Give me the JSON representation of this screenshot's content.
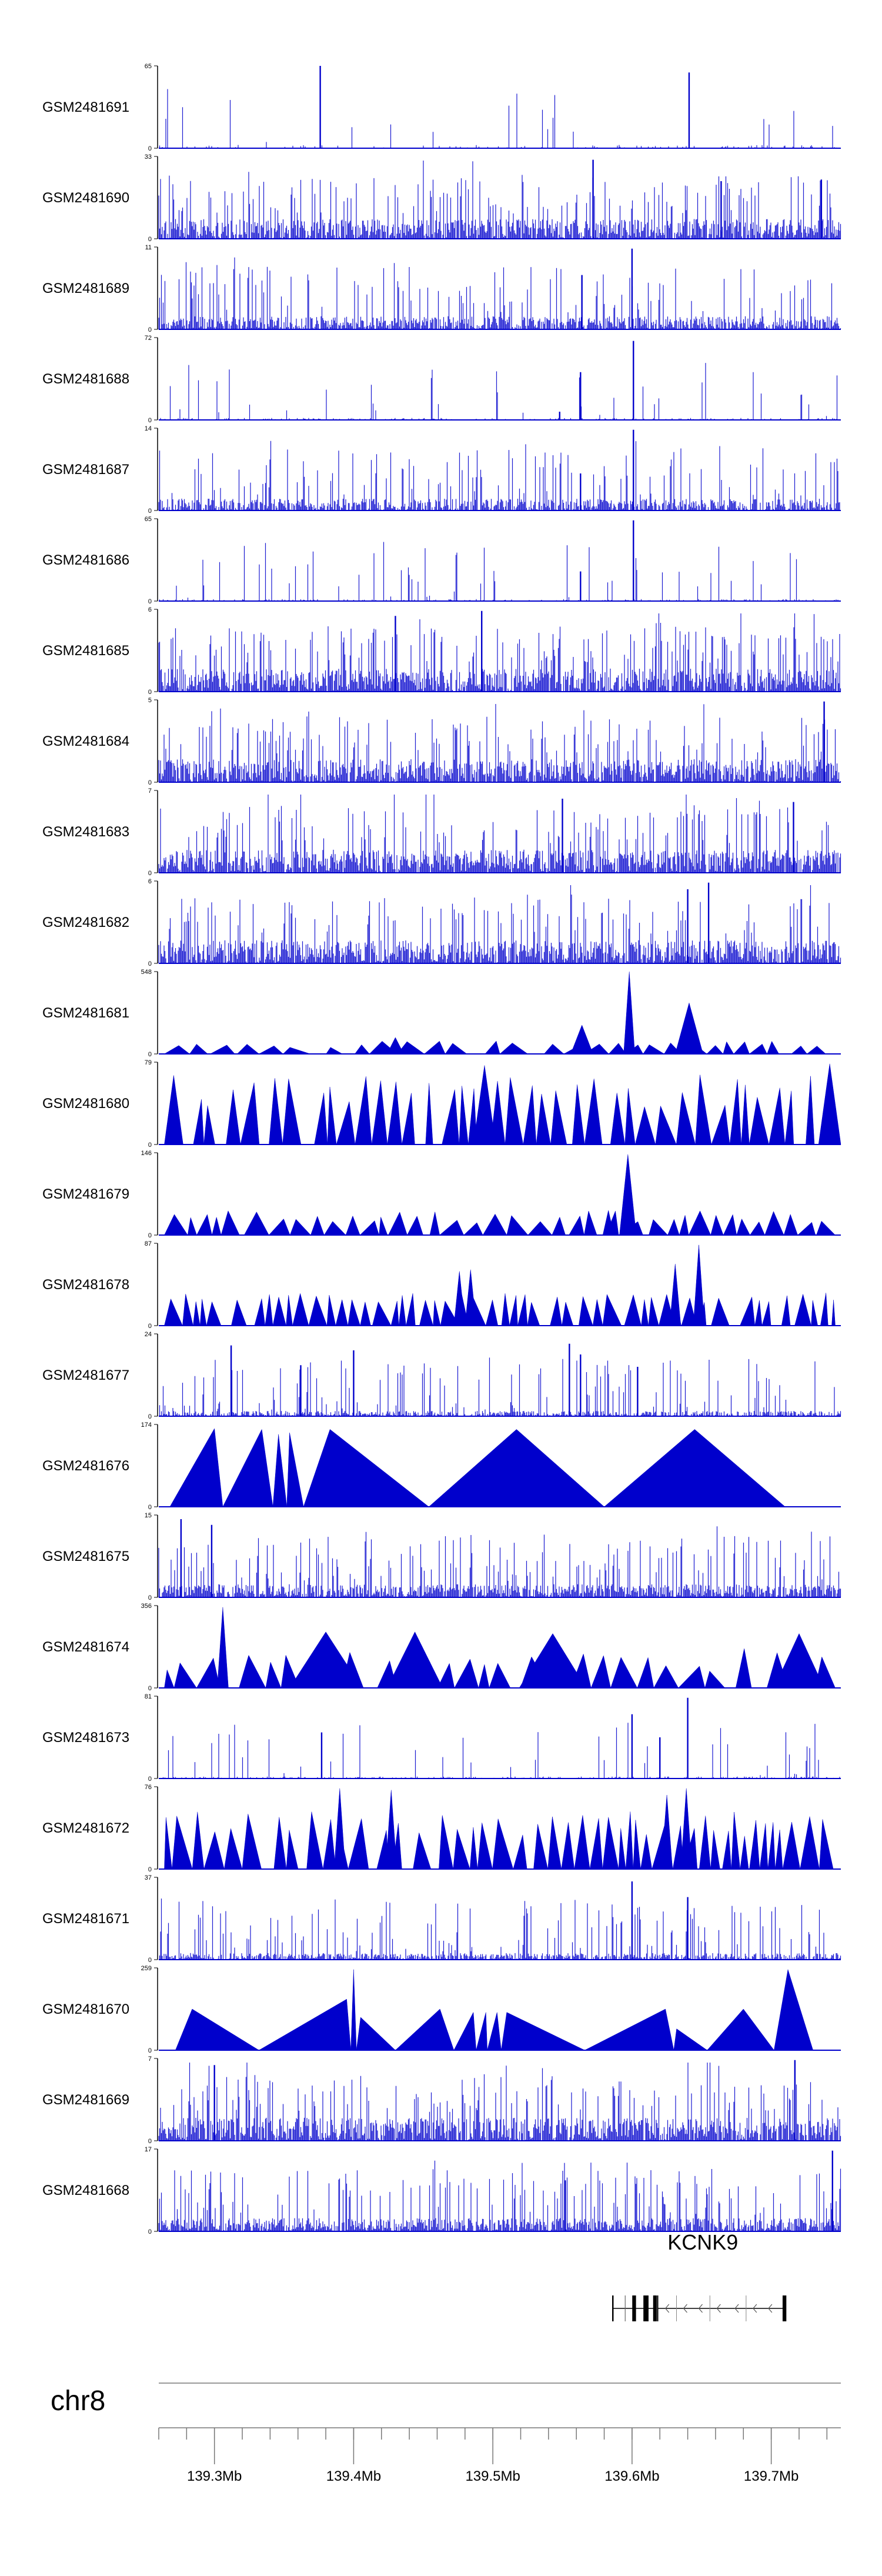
{
  "chart_data": {
    "type": "genome-browser-tracks",
    "chromosome": "chr8",
    "xlim_mb": [
      139.26,
      139.75
    ],
    "x_ticks_mb": [
      139.3,
      139.4,
      139.5,
      139.6,
      139.7
    ],
    "x_tick_labels": [
      "139.3Mb",
      "139.4Mb",
      "139.5Mb",
      "139.6Mb",
      "139.7Mb"
    ],
    "minor_tick_step_mb": 0.02,
    "track_color": "#0000cc",
    "tracks": [
      {
        "name": "GSM2481691",
        "ymax": 65,
        "ymin": 0,
        "style": "bars",
        "density": 0.15,
        "base": 0.05,
        "peaks": [
          {
            "x": 139.376,
            "y": 1.0
          },
          {
            "x": 139.641,
            "y": 0.92
          }
        ]
      },
      {
        "name": "GSM2481690",
        "ymax": 33,
        "ymin": 0,
        "style": "bars",
        "density": 0.95,
        "base": 0.3,
        "peaks": [
          {
            "x": 139.572,
            "y": 0.96
          },
          {
            "x": 139.664,
            "y": 0.7
          },
          {
            "x": 139.736,
            "y": 0.72
          }
        ]
      },
      {
        "name": "GSM2481689",
        "ymax": 11,
        "ymin": 0,
        "style": "bars",
        "density": 0.9,
        "base": 0.2,
        "peaks": [
          {
            "x": 139.564,
            "y": 0.66
          },
          {
            "x": 139.6,
            "y": 0.98
          }
        ]
      },
      {
        "name": "GSM2481688",
        "ymax": 72,
        "ymin": 0,
        "style": "bars",
        "density": 0.3,
        "base": 0.03,
        "peaks": [
          {
            "x": 139.563,
            "y": 0.58
          },
          {
            "x": 139.601,
            "y": 0.96
          },
          {
            "x": 139.548,
            "y": 0.1
          }
        ]
      },
      {
        "name": "GSM2481687",
        "ymax": 14,
        "ymin": 0,
        "style": "bars",
        "density": 0.85,
        "base": 0.18,
        "peaks": [
          {
            "x": 139.601,
            "y": 0.98
          },
          {
            "x": 139.563,
            "y": 0.45
          }
        ]
      },
      {
        "name": "GSM2481686",
        "ymax": 65,
        "ymin": 0,
        "style": "bars",
        "density": 0.3,
        "base": 0.03,
        "peaks": [
          {
            "x": 139.563,
            "y": 0.36
          },
          {
            "x": 139.601,
            "y": 0.98
          }
        ]
      },
      {
        "name": "GSM2481685",
        "ymax": 6,
        "ymin": 0,
        "style": "bars",
        "density": 0.95,
        "base": 0.35,
        "peaks": [
          {
            "x": 139.492,
            "y": 0.98
          },
          {
            "x": 139.43,
            "y": 0.92
          }
        ]
      },
      {
        "name": "GSM2481684",
        "ymax": 5,
        "ymin": 0,
        "style": "bars",
        "density": 0.95,
        "base": 0.35,
        "peaks": [
          {
            "x": 139.738,
            "y": 0.98
          }
        ]
      },
      {
        "name": "GSM2481683",
        "ymax": 7,
        "ymin": 0,
        "style": "bars",
        "density": 0.95,
        "base": 0.35,
        "peaks": [
          {
            "x": 139.55,
            "y": 0.9
          },
          {
            "x": 139.716,
            "y": 0.86
          }
        ]
      },
      {
        "name": "GSM2481682",
        "ymax": 6,
        "ymin": 0,
        "style": "bars",
        "density": 0.95,
        "base": 0.35,
        "peaks": [
          {
            "x": 139.655,
            "y": 0.98
          },
          {
            "x": 139.64,
            "y": 0.9
          }
        ]
      },
      {
        "name": "GSM2481681",
        "ymax": 548,
        "ymin": 0,
        "style": "triangles",
        "seed": 11,
        "avgWidth": 0.014,
        "minH": 0.08,
        "maxH": 0.16,
        "peaks": [
          {
            "x": 139.598,
            "y": 1.0,
            "w": 0.004
          },
          {
            "x": 139.641,
            "y": 0.62,
            "w": 0.01
          },
          {
            "x": 139.564,
            "y": 0.35,
            "w": 0.008
          },
          {
            "x": 139.43,
            "y": 0.2,
            "w": 0.006
          }
        ]
      },
      {
        "name": "GSM2481680",
        "ymax": 79,
        "ymin": 0,
        "style": "triangles",
        "seed": 12,
        "avgWidth": 0.01,
        "minH": 0.45,
        "maxH": 0.85,
        "peaks": [
          {
            "x": 139.494,
            "y": 0.96,
            "w": 0.008
          },
          {
            "x": 139.742,
            "y": 0.98,
            "w": 0.008
          }
        ]
      },
      {
        "name": "GSM2481679",
        "ymax": 146,
        "ymin": 0,
        "style": "triangles",
        "seed": 13,
        "avgWidth": 0.012,
        "minH": 0.15,
        "maxH": 0.3,
        "peaks": [
          {
            "x": 139.597,
            "y": 0.98,
            "w": 0.006
          },
          {
            "x": 139.583,
            "y": 0.3,
            "w": 0.004
          }
        ]
      },
      {
        "name": "GSM2481678",
        "ymax": 87,
        "ymin": 0,
        "style": "triangles",
        "seed": 14,
        "avgWidth": 0.009,
        "minH": 0.28,
        "maxH": 0.4,
        "peaks": [
          {
            "x": 139.476,
            "y": 0.66,
            "w": 0.004
          },
          {
            "x": 139.484,
            "y": 0.68,
            "w": 0.004
          },
          {
            "x": 139.648,
            "y": 0.98,
            "w": 0.004
          },
          {
            "x": 139.631,
            "y": 0.75,
            "w": 0.004
          }
        ]
      },
      {
        "name": "GSM2481677",
        "ymax": 24,
        "ymin": 0,
        "style": "bars",
        "density": 0.75,
        "base": 0.08,
        "peaks": [
          {
            "x": 139.312,
            "y": 0.86
          },
          {
            "x": 139.362,
            "y": 0.62
          },
          {
            "x": 139.4,
            "y": 0.8
          },
          {
            "x": 139.555,
            "y": 0.88
          },
          {
            "x": 139.563,
            "y": 0.75
          },
          {
            "x": 139.604,
            "y": 0.6
          }
        ]
      },
      {
        "name": "GSM2481676",
        "ymax": 174,
        "ymin": 0,
        "style": "custom-triangles",
        "tris": [
          [
            139.268,
            139.3,
            139.306,
            0.95
          ],
          [
            139.306,
            139.334,
            139.342,
            0.94
          ],
          [
            139.342,
            139.346,
            139.352,
            0.88
          ],
          [
            139.352,
            139.354,
            139.364,
            0.9
          ],
          [
            139.364,
            139.383,
            139.454,
            0.94
          ],
          [
            139.454,
            139.517,
            139.58,
            0.94
          ],
          [
            139.58,
            139.645,
            139.71,
            0.94
          ]
        ]
      },
      {
        "name": "GSM2481675",
        "ymax": 15,
        "ymin": 0,
        "style": "bars",
        "density": 0.95,
        "base": 0.2,
        "peaks": [
          {
            "x": 139.276,
            "y": 0.95
          },
          {
            "x": 139.298,
            "y": 0.88
          }
        ]
      },
      {
        "name": "GSM2481674",
        "ymax": 356,
        "ymin": 0,
        "style": "triangles",
        "seed": 15,
        "avgWidth": 0.014,
        "minH": 0.2,
        "maxH": 0.5,
        "peaks": [
          {
            "x": 139.306,
            "y": 0.98,
            "w": 0.004
          },
          {
            "x": 139.38,
            "y": 0.68,
            "w": 0.026
          },
          {
            "x": 139.444,
            "y": 0.68,
            "w": 0.02
          },
          {
            "x": 139.543,
            "y": 0.66,
            "w": 0.024
          },
          {
            "x": 139.72,
            "y": 0.66,
            "w": 0.018
          }
        ]
      },
      {
        "name": "GSM2481673",
        "ymax": 81,
        "ymin": 0,
        "style": "bars",
        "density": 0.4,
        "base": 0.03,
        "peaks": [
          {
            "x": 139.377,
            "y": 0.56
          },
          {
            "x": 139.6,
            "y": 0.78
          },
          {
            "x": 139.64,
            "y": 0.98
          },
          {
            "x": 139.62,
            "y": 0.5
          }
        ]
      },
      {
        "name": "GSM2481672",
        "ymax": 76,
        "ymin": 0,
        "style": "triangles",
        "seed": 16,
        "avgWidth": 0.01,
        "minH": 0.4,
        "maxH": 0.7,
        "peaks": [
          {
            "x": 139.39,
            "y": 0.98,
            "w": 0.004
          },
          {
            "x": 139.427,
            "y": 0.96,
            "w": 0.004
          },
          {
            "x": 139.639,
            "y": 0.98,
            "w": 0.004
          },
          {
            "x": 139.625,
            "y": 0.9,
            "w": 0.004
          }
        ]
      },
      {
        "name": "GSM2481671",
        "ymax": 37,
        "ymin": 0,
        "style": "bars",
        "density": 0.85,
        "base": 0.1,
        "peaks": [
          {
            "x": 139.6,
            "y": 0.95
          },
          {
            "x": 139.64,
            "y": 0.76
          }
        ]
      },
      {
        "name": "GSM2481670",
        "ymax": 259,
        "ymin": 0,
        "style": "custom-triangles",
        "tris": [
          [
            139.272,
            139.284,
            139.332,
            0.5
          ],
          [
            139.332,
            139.395,
            139.398,
            0.62
          ],
          [
            139.398,
            139.4,
            139.402,
            0.98
          ],
          [
            139.402,
            139.405,
            139.43,
            0.4
          ],
          [
            139.43,
            139.462,
            139.472,
            0.5
          ],
          [
            139.472,
            139.486,
            139.488,
            0.46
          ],
          [
            139.488,
            139.495,
            139.496,
            0.46
          ],
          [
            139.496,
            139.503,
            139.506,
            0.46
          ],
          [
            139.506,
            139.51,
            139.566,
            0.46
          ],
          [
            139.566,
            139.624,
            139.63,
            0.5
          ],
          [
            139.63,
            139.632,
            139.654,
            0.26
          ],
          [
            139.654,
            139.68,
            139.702,
            0.5
          ],
          [
            139.702,
            139.712,
            139.73,
            0.98
          ]
        ]
      },
      {
        "name": "GSM2481669",
        "ymax": 7,
        "ymin": 0,
        "style": "bars",
        "density": 0.95,
        "base": 0.35,
        "peaks": [
          {
            "x": 139.717,
            "y": 0.98
          },
          {
            "x": 139.3,
            "y": 0.92
          }
        ]
      },
      {
        "name": "GSM2481668",
        "ymax": 17,
        "ymin": 0,
        "style": "bars",
        "density": 0.95,
        "base": 0.2,
        "peaks": [
          {
            "x": 139.744,
            "y": 0.98
          },
          {
            "x": 139.552,
            "y": 0.62
          }
        ]
      }
    ],
    "gene": {
      "name": "KCNK9",
      "strand": "-",
      "start_mb": 139.601,
      "end_mb": 139.71,
      "exons_mb": [
        [
          139.601,
          139.602
        ],
        [
          139.609,
          139.611
        ],
        [
          139.616,
          139.618
        ],
        [
          139.709,
          139.71
        ]
      ],
      "intron_marks_mb": [
        139.624,
        139.637,
        139.648,
        139.661,
        139.674,
        139.687,
        139.698
      ]
    }
  }
}
